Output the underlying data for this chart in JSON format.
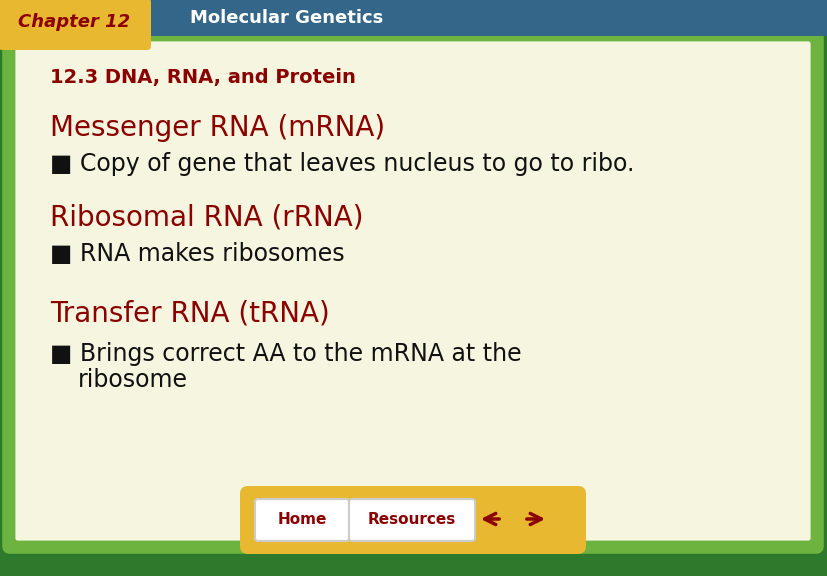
{
  "fig_w": 8.28,
  "fig_h": 5.76,
  "dpi": 100,
  "bg_outer": "#2d7a2d",
  "bg_header": "#336688",
  "bg_tab": "#e8b830",
  "content_bg": "#f5f5e0",
  "border_light_green": "#6db33f",
  "border_dark_green": "#2d7a2d",
  "header_text": "Molecular Genetics",
  "header_text_color": "#ffffff",
  "tab_text": "Chapter 12",
  "tab_text_color": "#8b0000",
  "subtitle": "12.3 DNA, RNA, and Protein",
  "subtitle_color": "#8b0000",
  "heading1": "Messenger RNA (mRNA)",
  "bullet1": "■ Copy of gene that leaves nucleus to go to ribo.",
  "heading2": "Ribosomal RNA (rRNA)",
  "bullet2": "■ RNA makes ribosomes",
  "heading3": "Transfer RNA (tRNA)",
  "bullet3a": "■ Brings correct AA to the mRNA at the",
  "bullet3b": "   ribosome",
  "heading_color": "#8b0000",
  "bullet_color": "#111111",
  "nav_bg": "#e8b830",
  "nav_text_home": "Home",
  "nav_text_res": "Resources",
  "nav_btn_color": "#8b0000"
}
